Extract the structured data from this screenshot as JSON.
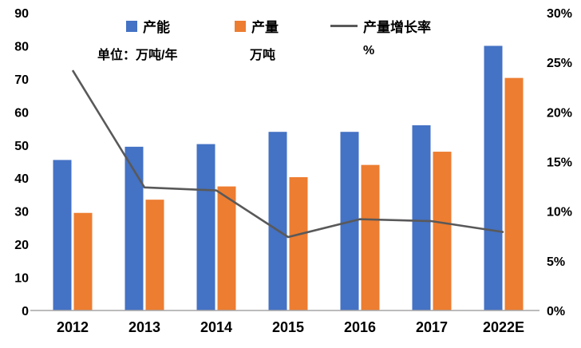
{
  "legend": {
    "items": [
      {
        "key": "capacity",
        "label": "产能",
        "unit": "单位：万吨/年",
        "color": "#4472C4",
        "marker": "square"
      },
      {
        "key": "output",
        "label": "产量",
        "unit": "万吨",
        "color": "#ED7D31",
        "marker": "square"
      },
      {
        "key": "output-growth-rate",
        "label": "产量增长率",
        "unit": "%",
        "color": "#595959",
        "marker": "line"
      }
    ]
  },
  "chart_data": {
    "type": "bar+line",
    "title": "",
    "categories": [
      "2012",
      "2013",
      "2014",
      "2015",
      "2016",
      "2017",
      "2022E"
    ],
    "series": [
      {
        "name": "产能",
        "key": "capacity",
        "type": "bar",
        "axis": "left",
        "color": "#4472C4",
        "values": [
          45.5,
          49.5,
          50.3,
          54,
          54,
          56,
          80
        ]
      },
      {
        "name": "产量",
        "key": "output",
        "type": "bar",
        "axis": "left",
        "color": "#ED7D31",
        "values": [
          29.5,
          33.5,
          37.5,
          40.3,
          44,
          48,
          70.3
        ]
      },
      {
        "name": "产量增长率",
        "key": "output-growth-rate",
        "type": "line",
        "axis": "right",
        "color": "#595959",
        "values": [
          24.2,
          12.4,
          12.1,
          7.4,
          9.2,
          9.0,
          7.9
        ]
      }
    ],
    "left_axis": {
      "label": "万吨/年",
      "min": 0,
      "max": 90,
      "step": 10,
      "ticks": [
        "0",
        "10",
        "20",
        "30",
        "40",
        "50",
        "60",
        "70",
        "80",
        "90"
      ]
    },
    "right_axis": {
      "label": "%",
      "min": 0,
      "max": 30,
      "step": 5,
      "ticks": [
        "0%",
        "5%",
        "10%",
        "15%",
        "20%",
        "25%",
        "30%"
      ]
    },
    "grid": false,
    "legend_position": "top",
    "axis_line_color": "#a6a6a6"
  }
}
